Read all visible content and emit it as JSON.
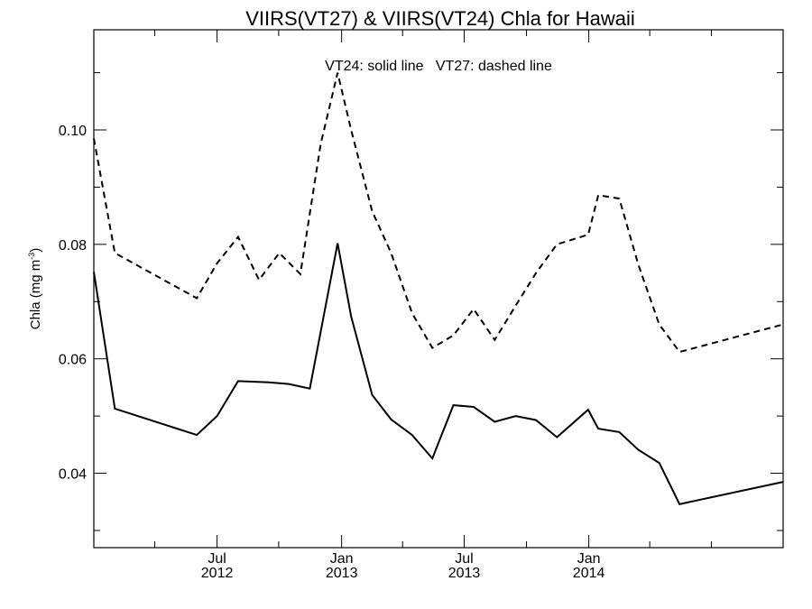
{
  "chart_data": {
    "type": "line",
    "title": "VIIRS(VT27) & VIIRS(VT24)  Chla for Hawaii",
    "annotation": "VT24: solid line   VT27: dashed line",
    "ylabel": {
      "main": "Chla (mg m",
      "sup": "-3",
      "end": ")"
    },
    "xlabel": "",
    "ylim": [
      0.027,
      0.1175
    ],
    "xlim": [
      "2012-01-01",
      "2014-10-15"
    ],
    "grid": false,
    "y_ticks": [
      {
        "value": 0.04,
        "label": "0.04"
      },
      {
        "value": 0.06,
        "label": "0.06"
      },
      {
        "value": 0.08,
        "label": "0.08"
      },
      {
        "value": 0.1,
        "label": "0.10"
      }
    ],
    "y_minor_ticks": [
      0.03,
      0.05,
      0.07,
      0.09,
      0.11
    ],
    "x_ticks": [
      {
        "date": "2012-07-01",
        "label": "Jul",
        "year": "2012"
      },
      {
        "date": "2013-01-01",
        "label": "Jan",
        "year": "2013"
      },
      {
        "date": "2013-07-01",
        "label": "Jul",
        "year": "2013"
      },
      {
        "date": "2014-01-01",
        "label": "Jan",
        "year": "2014"
      }
    ],
    "x_minor_ticks": [
      "2012-03-31",
      "2012-09-30",
      "2013-04-01",
      "2013-10-01",
      "2014-04-01",
      "2014-07-01"
    ],
    "series": [
      {
        "name": "VT24",
        "style": "solid",
        "color": "#000000",
        "points": [
          {
            "x": "2012-01-01",
            "y": 0.0752
          },
          {
            "x": "2012-02-01",
            "y": 0.0513
          },
          {
            "x": "2012-06-01",
            "y": 0.0467
          },
          {
            "x": "2012-07-01",
            "y": 0.05
          },
          {
            "x": "2012-08-01",
            "y": 0.0561
          },
          {
            "x": "2012-09-15",
            "y": 0.0559
          },
          {
            "x": "2012-10-15",
            "y": 0.0556
          },
          {
            "x": "2012-11-15",
            "y": 0.0548
          },
          {
            "x": "2012-12-26",
            "y": 0.0802
          },
          {
            "x": "2013-01-15",
            "y": 0.0674
          },
          {
            "x": "2013-02-15",
            "y": 0.0537
          },
          {
            "x": "2013-03-15",
            "y": 0.0494
          },
          {
            "x": "2013-04-15",
            "y": 0.0467
          },
          {
            "x": "2013-05-15",
            "y": 0.0426
          },
          {
            "x": "2013-06-15",
            "y": 0.0519
          },
          {
            "x": "2013-07-15",
            "y": 0.0516
          },
          {
            "x": "2013-08-15",
            "y": 0.049
          },
          {
            "x": "2013-09-15",
            "y": 0.05
          },
          {
            "x": "2013-10-15",
            "y": 0.0493
          },
          {
            "x": "2013-11-15",
            "y": 0.0463
          },
          {
            "x": "2013-12-31",
            "y": 0.0511
          },
          {
            "x": "2014-01-15",
            "y": 0.0478
          },
          {
            "x": "2014-02-15",
            "y": 0.0472
          },
          {
            "x": "2014-03-15",
            "y": 0.0441
          },
          {
            "x": "2014-04-15",
            "y": 0.0418
          },
          {
            "x": "2014-05-15",
            "y": 0.0346
          },
          {
            "x": "2014-10-15",
            "y": 0.0385
          }
        ]
      },
      {
        "name": "VT27",
        "style": "dashed",
        "color": "#000000",
        "points": [
          {
            "x": "2012-01-01",
            "y": 0.0985
          },
          {
            "x": "2012-02-01",
            "y": 0.0785
          },
          {
            "x": "2012-06-01",
            "y": 0.0706
          },
          {
            "x": "2012-07-01",
            "y": 0.0767
          },
          {
            "x": "2012-08-01",
            "y": 0.0813
          },
          {
            "x": "2012-09-01",
            "y": 0.0738
          },
          {
            "x": "2012-10-01",
            "y": 0.0785
          },
          {
            "x": "2012-11-01",
            "y": 0.0748
          },
          {
            "x": "2012-12-01",
            "y": 0.0975
          },
          {
            "x": "2012-12-26",
            "y": 0.11
          },
          {
            "x": "2013-01-15",
            "y": 0.1
          },
          {
            "x": "2013-02-15",
            "y": 0.0858
          },
          {
            "x": "2013-03-15",
            "y": 0.0785
          },
          {
            "x": "2013-04-15",
            "y": 0.068
          },
          {
            "x": "2013-05-15",
            "y": 0.0619
          },
          {
            "x": "2013-06-15",
            "y": 0.0641
          },
          {
            "x": "2013-07-15",
            "y": 0.0687
          },
          {
            "x": "2013-08-15",
            "y": 0.0633
          },
          {
            "x": "2013-09-15",
            "y": 0.0693
          },
          {
            "x": "2013-10-15",
            "y": 0.075
          },
          {
            "x": "2013-11-15",
            "y": 0.08
          },
          {
            "x": "2013-12-31",
            "y": 0.0817
          },
          {
            "x": "2014-01-15",
            "y": 0.0886
          },
          {
            "x": "2014-02-15",
            "y": 0.088
          },
          {
            "x": "2014-03-15",
            "y": 0.0765
          },
          {
            "x": "2014-04-15",
            "y": 0.066
          },
          {
            "x": "2014-05-15",
            "y": 0.0612
          },
          {
            "x": "2014-10-15",
            "y": 0.066
          }
        ]
      }
    ]
  }
}
